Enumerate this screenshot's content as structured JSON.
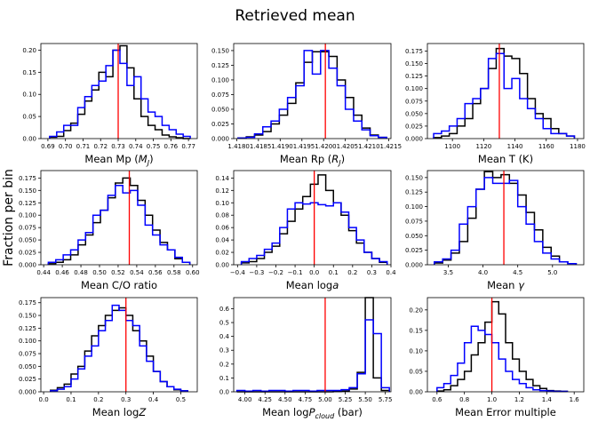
{
  "figure": {
    "title": "Retrieved mean",
    "ylabel": "Fraction per bin",
    "colors": {
      "hist_a": "#000000",
      "hist_b": "#0000ff",
      "truth": "#ff0000"
    }
  },
  "chart_data": [
    {
      "type": "histogram",
      "xlabel": "Mean Mp (M_J)",
      "xlabel_parts": [
        {
          "t": "Mean Mp ("
        },
        {
          "t": "M",
          "i": true
        },
        {
          "t": "J",
          "sub": true,
          "i": true
        },
        {
          "t": ")"
        }
      ],
      "xlim": [
        0.686,
        0.775
      ],
      "ylim": [
        0,
        0.215
      ],
      "xticks": [
        0.69,
        0.7,
        0.71,
        0.72,
        0.73,
        0.74,
        0.75,
        0.76,
        0.77
      ],
      "xtick_labels": [
        "0.69",
        "0.70",
        "0.71",
        "0.72",
        "0.73",
        "0.74",
        "0.75",
        "0.76",
        "0.77"
      ],
      "yticks": [
        0,
        0.05,
        0.1,
        0.15,
        0.2
      ],
      "ytick_labels": [
        "0.00",
        "0.05",
        "0.10",
        "0.15",
        "0.20"
      ],
      "truth": 0.73,
      "edges": [
        0.691,
        0.695,
        0.699,
        0.703,
        0.707,
        0.711,
        0.715,
        0.719,
        0.723,
        0.727,
        0.731,
        0.735,
        0.739,
        0.743,
        0.747,
        0.751,
        0.755,
        0.759,
        0.763,
        0.767,
        0.771
      ],
      "series": [
        {
          "key": "hist_a",
          "values": [
            0.003,
            0.005,
            0.018,
            0.035,
            0.055,
            0.085,
            0.11,
            0.15,
            0.14,
            0.2,
            0.21,
            0.16,
            0.09,
            0.05,
            0.03,
            0.02,
            0.008,
            0.004,
            0.002,
            0.0
          ]
        },
        {
          "key": "hist_b",
          "values": [
            0.005,
            0.015,
            0.03,
            0.03,
            0.07,
            0.095,
            0.12,
            0.13,
            0.165,
            0.2,
            0.17,
            0.12,
            0.14,
            0.09,
            0.06,
            0.05,
            0.03,
            0.02,
            0.01,
            0.005
          ]
        }
      ]
    },
    {
      "type": "histogram",
      "xlabel": "Mean Rp (R_J)",
      "xlabel_parts": [
        {
          "t": "Mean Rp ("
        },
        {
          "t": "R",
          "i": true
        },
        {
          "t": "J",
          "sub": true,
          "i": true
        },
        {
          "t": ")"
        }
      ],
      "xlim": [
        1.41793,
        1.42155
      ],
      "ylim": [
        0,
        0.162
      ],
      "xticks": [
        1.418,
        1.4185,
        1.419,
        1.4195,
        1.42,
        1.4205,
        1.421,
        1.4215
      ],
      "xtick_labels": [
        "1.418",
        "01.4185",
        "1.419",
        "01.4195",
        "1.420",
        "01.4205",
        "1.421",
        "01.4215"
      ],
      "yticks": [
        0,
        0.025,
        0.05,
        0.075,
        0.1,
        0.125,
        0.15
      ],
      "ytick_labels": [
        "0.000",
        "0.025",
        "0.050",
        "0.075",
        "0.100",
        "0.125",
        "0.150"
      ],
      "truth": 1.42004,
      "edges": [
        1.41803,
        1.41822,
        1.41841,
        1.4186,
        1.41879,
        1.41898,
        1.41917,
        1.41936,
        1.41955,
        1.41974,
        1.41993,
        1.42012,
        1.42031,
        1.4205,
        1.42069,
        1.42088,
        1.42107,
        1.42126,
        1.42145
      ],
      "series": [
        {
          "key": "hist_a",
          "values": [
            0.001,
            0.003,
            0.006,
            0.012,
            0.025,
            0.04,
            0.06,
            0.095,
            0.13,
            0.148,
            0.148,
            0.14,
            0.1,
            0.07,
            0.04,
            0.018,
            0.006,
            0.002
          ]
        },
        {
          "key": "hist_b",
          "values": [
            0.001,
            0.002,
            0.008,
            0.02,
            0.03,
            0.05,
            0.07,
            0.09,
            0.15,
            0.11,
            0.15,
            0.12,
            0.09,
            0.05,
            0.03,
            0.015,
            0.005,
            0.002
          ]
        }
      ]
    },
    {
      "type": "histogram",
      "xlabel": "Mean T (K)",
      "xlabel_parts": [
        {
          "t": "Mean T (K)"
        }
      ],
      "xlim": [
        1084,
        1184
      ],
      "ylim": [
        0,
        0.19
      ],
      "xticks": [
        1100,
        1120,
        1140,
        1160,
        1180
      ],
      "xtick_labels": [
        "1100",
        "1120",
        "1140",
        "1160",
        "1180"
      ],
      "yticks": [
        0,
        0.025,
        0.05,
        0.075,
        0.1,
        0.125,
        0.15,
        0.175
      ],
      "ytick_labels": [
        "0.000",
        "0.025",
        "0.050",
        "0.075",
        "0.100",
        "0.125",
        "0.150",
        "0.175"
      ],
      "truth": 1130,
      "edges": [
        1088,
        1093,
        1098,
        1103,
        1108,
        1113,
        1118,
        1123,
        1128,
        1133,
        1138,
        1143,
        1148,
        1153,
        1158,
        1163,
        1168,
        1173,
        1178
      ],
      "series": [
        {
          "key": "hist_a",
          "values": [
            0.002,
            0.005,
            0.01,
            0.025,
            0.04,
            0.07,
            0.1,
            0.14,
            0.18,
            0.165,
            0.16,
            0.13,
            0.08,
            0.05,
            0.04,
            0.02,
            0.01,
            0.005
          ]
        },
        {
          "key": "hist_b",
          "values": [
            0.01,
            0.015,
            0.025,
            0.04,
            0.07,
            0.08,
            0.1,
            0.16,
            0.17,
            0.1,
            0.12,
            0.08,
            0.06,
            0.04,
            0.02,
            0.01,
            0.01,
            0.005
          ]
        }
      ]
    },
    {
      "type": "histogram",
      "xlabel": "Mean C/O ratio",
      "xlabel_parts": [
        {
          "t": "Mean C/O ratio"
        }
      ],
      "xlim": [
        0.437,
        0.605
      ],
      "ylim": [
        0,
        0.19
      ],
      "xticks": [
        0.44,
        0.46,
        0.48,
        0.5,
        0.52,
        0.54,
        0.56,
        0.58,
        0.6
      ],
      "xtick_labels": [
        "0.44",
        "0.46",
        "0.48",
        "0.50",
        "0.52",
        "0.54",
        "0.56",
        "0.58",
        "0.60"
      ],
      "yticks": [
        0,
        0.025,
        0.05,
        0.075,
        0.1,
        0.125,
        0.15,
        0.175
      ],
      "ytick_labels": [
        "0.000",
        "0.025",
        "0.050",
        "0.075",
        "0.100",
        "0.125",
        "0.150",
        "0.175"
      ],
      "truth": 0.532,
      "edges": [
        0.445,
        0.453,
        0.461,
        0.469,
        0.477,
        0.485,
        0.493,
        0.501,
        0.509,
        0.517,
        0.525,
        0.533,
        0.541,
        0.549,
        0.557,
        0.565,
        0.573,
        0.581,
        0.589,
        0.597
      ],
      "series": [
        {
          "key": "hist_a",
          "values": [
            0.002,
            0.005,
            0.01,
            0.02,
            0.04,
            0.06,
            0.085,
            0.11,
            0.135,
            0.165,
            0.175,
            0.16,
            0.13,
            0.1,
            0.07,
            0.045,
            0.03,
            0.012,
            0.005
          ]
        },
        {
          "key": "hist_b",
          "values": [
            0.005,
            0.01,
            0.02,
            0.03,
            0.05,
            0.065,
            0.1,
            0.11,
            0.14,
            0.16,
            0.145,
            0.15,
            0.12,
            0.08,
            0.06,
            0.04,
            0.03,
            0.015,
            0.005
          ]
        }
      ]
    },
    {
      "type": "histogram",
      "xlabel": "Mean loga",
      "xlabel_parts": [
        {
          "t": "Mean log"
        },
        {
          "t": "a",
          "i": true
        }
      ],
      "xlim": [
        -0.42,
        0.4
      ],
      "ylim": [
        0,
        0.152
      ],
      "xticks": [
        -0.4,
        -0.3,
        -0.2,
        -0.1,
        0.0,
        0.1,
        0.2,
        0.3,
        0.4
      ],
      "xtick_labels": [
        "−0.4",
        "−0.3",
        "−0.2",
        "−0.1",
        "0.0",
        "0.1",
        "0.2",
        "0.3",
        "0.4"
      ],
      "yticks": [
        0,
        0.02,
        0.04,
        0.06,
        0.08,
        0.1,
        0.12,
        0.14
      ],
      "ytick_labels": [
        "0.00",
        "0.02",
        "0.04",
        "0.06",
        "0.08",
        "0.10",
        "0.12",
        "0.14"
      ],
      "truth": 0.0,
      "edges": [
        -0.38,
        -0.34,
        -0.3,
        -0.26,
        -0.22,
        -0.18,
        -0.14,
        -0.1,
        -0.06,
        -0.02,
        0.02,
        0.06,
        0.1,
        0.14,
        0.18,
        0.22,
        0.26,
        0.3,
        0.34,
        0.38
      ],
      "series": [
        {
          "key": "hist_a",
          "values": [
            0.003,
            0.005,
            0.01,
            0.02,
            0.03,
            0.05,
            0.07,
            0.09,
            0.11,
            0.13,
            0.145,
            0.12,
            0.1,
            0.08,
            0.055,
            0.035,
            0.02,
            0.01,
            0.004
          ]
        },
        {
          "key": "hist_b",
          "values": [
            0.005,
            0.01,
            0.015,
            0.025,
            0.035,
            0.06,
            0.09,
            0.1,
            0.098,
            0.1,
            0.097,
            0.095,
            0.1,
            0.085,
            0.06,
            0.04,
            0.02,
            0.01,
            0.005
          ]
        }
      ]
    },
    {
      "type": "histogram",
      "xlabel": "Mean γ",
      "xlabel_parts": [
        {
          "t": "Mean "
        },
        {
          "t": "γ",
          "i": true
        }
      ],
      "xlim": [
        3.2,
        5.45
      ],
      "ylim": [
        0,
        0.162
      ],
      "xticks": [
        3.5,
        4.0,
        4.5,
        5.0
      ],
      "xtick_labels": [
        "3.5",
        "4.0",
        "4.5",
        "5.0"
      ],
      "yticks": [
        0,
        0.025,
        0.05,
        0.075,
        0.1,
        0.125,
        0.15
      ],
      "ytick_labels": [
        "0.000",
        "0.025",
        "0.050",
        "0.075",
        "0.100",
        "0.125",
        "0.150"
      ],
      "truth": 4.3,
      "edges": [
        3.3,
        3.42,
        3.54,
        3.66,
        3.78,
        3.9,
        4.02,
        4.14,
        4.26,
        4.38,
        4.5,
        4.62,
        4.74,
        4.86,
        4.98,
        5.1,
        5.22,
        5.34
      ],
      "series": [
        {
          "key": "hist_a",
          "values": [
            0.003,
            0.008,
            0.02,
            0.04,
            0.08,
            0.13,
            0.16,
            0.15,
            0.155,
            0.14,
            0.12,
            0.09,
            0.06,
            0.03,
            0.015,
            0.005,
            0.002
          ]
        },
        {
          "key": "hist_b",
          "values": [
            0.005,
            0.01,
            0.025,
            0.07,
            0.1,
            0.13,
            0.15,
            0.14,
            0.14,
            0.145,
            0.1,
            0.07,
            0.04,
            0.02,
            0.01,
            0.005,
            0.002
          ]
        }
      ]
    },
    {
      "type": "histogram",
      "xlabel": "Mean logZ",
      "xlabel_parts": [
        {
          "t": "Mean log"
        },
        {
          "t": "Z",
          "i": true
        }
      ],
      "xlim": [
        -0.01,
        0.56
      ],
      "ylim": [
        0,
        0.185
      ],
      "xticks": [
        0.0,
        0.1,
        0.2,
        0.3,
        0.4,
        0.5
      ],
      "xtick_labels": [
        "0.0",
        "0.1",
        "0.2",
        "0.3",
        "0.4",
        "0.5"
      ],
      "yticks": [
        0,
        0.025,
        0.05,
        0.075,
        0.1,
        0.125,
        0.15,
        0.175
      ],
      "ytick_labels": [
        "0.000",
        "0.025",
        "0.050",
        "0.075",
        "0.100",
        "0.125",
        "0.150",
        "0.175"
      ],
      "truth": 0.3,
      "edges": [
        0.025,
        0.05,
        0.075,
        0.1,
        0.125,
        0.15,
        0.175,
        0.2,
        0.225,
        0.25,
        0.275,
        0.3,
        0.325,
        0.35,
        0.375,
        0.4,
        0.425,
        0.45,
        0.475,
        0.5,
        0.525
      ],
      "series": [
        {
          "key": "hist_a",
          "values": [
            0.003,
            0.008,
            0.015,
            0.035,
            0.05,
            0.08,
            0.11,
            0.13,
            0.15,
            0.16,
            0.165,
            0.15,
            0.12,
            0.1,
            0.07,
            0.04,
            0.02,
            0.01,
            0.004,
            0.002
          ]
        },
        {
          "key": "hist_b",
          "values": [
            0.002,
            0.005,
            0.01,
            0.025,
            0.045,
            0.07,
            0.09,
            0.12,
            0.14,
            0.17,
            0.16,
            0.14,
            0.13,
            0.09,
            0.06,
            0.04,
            0.02,
            0.01,
            0.005,
            0.002
          ]
        }
      ]
    },
    {
      "type": "histogram",
      "xlabel": "Mean logP_cloud (bar)",
      "xlabel_parts": [
        {
          "t": "Mean log"
        },
        {
          "t": "P",
          "i": true
        },
        {
          "t": "cloud",
          "sub": true,
          "i": true
        },
        {
          "t": " (bar)"
        }
      ],
      "xlim": [
        3.86,
        5.82
      ],
      "ylim": [
        0,
        0.68
      ],
      "xticks": [
        4.0,
        4.25,
        4.5,
        4.75,
        5.0,
        5.25,
        5.5,
        5.75
      ],
      "xtick_labels": [
        "4.00",
        "4.25",
        "4.50",
        "4.75",
        "5.00",
        "5.25",
        "5.50",
        "5.75"
      ],
      "yticks": [
        0,
        0.1,
        0.2,
        0.3,
        0.4,
        0.5,
        0.6
      ],
      "ytick_labels": [
        "0.0",
        "0.1",
        "0.2",
        "0.3",
        "0.4",
        "0.5",
        "0.6"
      ],
      "truth": 5.0,
      "edges": [
        3.9,
        4.0,
        4.1,
        4.2,
        4.3,
        4.4,
        4.5,
        4.6,
        4.7,
        4.8,
        4.9,
        5.0,
        5.1,
        5.2,
        5.3,
        5.4,
        5.5,
        5.6,
        5.7,
        5.8
      ],
      "series": [
        {
          "key": "hist_a",
          "values": [
            0.0,
            0.0,
            0.0,
            0.0,
            0.0,
            0.0,
            0.0,
            0.0,
            0.0,
            0.0,
            0.0,
            0.0,
            0.002,
            0.005,
            0.02,
            0.14,
            0.68,
            0.1,
            0.01
          ]
        },
        {
          "key": "hist_b",
          "values": [
            0.01,
            0.005,
            0.01,
            0.005,
            0.01,
            0.01,
            0.005,
            0.01,
            0.01,
            0.005,
            0.01,
            0.01,
            0.01,
            0.015,
            0.03,
            0.13,
            0.52,
            0.42,
            0.03
          ]
        }
      ]
    },
    {
      "type": "histogram",
      "xlabel": "Mean Error multiple",
      "xlabel_parts": [
        {
          "t": "Mean Error multiple"
        }
      ],
      "xlim": [
        0.53,
        1.67
      ],
      "ylim": [
        0,
        0.23
      ],
      "xticks": [
        0.6,
        0.8,
        1.0,
        1.2,
        1.4,
        1.6
      ],
      "xtick_labels": [
        "0.6",
        "0.8",
        "1.0",
        "1.2",
        "1.4",
        "1.6"
      ],
      "yticks": [
        0,
        0.05,
        0.1,
        0.15,
        0.2
      ],
      "ytick_labels": [
        "0.00",
        "0.05",
        "0.10",
        "0.15",
        "0.20"
      ],
      "truth": 1.0,
      "edges": [
        0.6,
        0.65,
        0.7,
        0.75,
        0.8,
        0.85,
        0.9,
        0.95,
        1.0,
        1.05,
        1.1,
        1.15,
        1.2,
        1.25,
        1.3,
        1.35,
        1.4,
        1.45,
        1.5,
        1.55
      ],
      "series": [
        {
          "key": "hist_a",
          "values": [
            0.002,
            0.005,
            0.015,
            0.03,
            0.05,
            0.09,
            0.12,
            0.17,
            0.22,
            0.19,
            0.12,
            0.08,
            0.05,
            0.03,
            0.015,
            0.008,
            0.003,
            0.002,
            0.001
          ]
        },
        {
          "key": "hist_b",
          "values": [
            0.01,
            0.02,
            0.04,
            0.07,
            0.12,
            0.16,
            0.15,
            0.14,
            0.12,
            0.08,
            0.05,
            0.03,
            0.02,
            0.01,
            0.005,
            0.003,
            0.002,
            0.001,
            0.001
          ]
        }
      ]
    }
  ]
}
